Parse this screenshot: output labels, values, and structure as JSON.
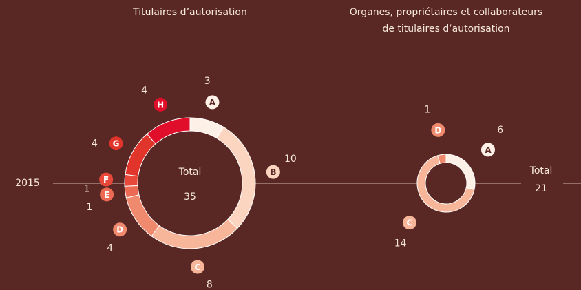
{
  "row_label": "2015",
  "chart_data": [
    {
      "type": "donut",
      "title": [
        "Titulaires d’autorisation"
      ],
      "categories": [
        "A",
        "B",
        "C",
        "D",
        "E",
        "F",
        "G",
        "H"
      ],
      "values": [
        3,
        10,
        8,
        4,
        1,
        1,
        4,
        4
      ],
      "colors": [
        "#fdf0e6",
        "#fbd5c0",
        "#f7b59a",
        "#f08a6e",
        "#ec6a53",
        "#e8483a",
        "#e1342a",
        "#e00e2a"
      ],
      "center_label": "Total",
      "total": 35
    },
    {
      "type": "donut",
      "title": [
        "Organes, propriétaires et collaborateurs",
        "de titulaires d’autorisation"
      ],
      "categories": [
        "A",
        "C",
        "D"
      ],
      "values": [
        6,
        14,
        1
      ],
      "colors": [
        "#fdf0e6",
        "#f7b59a",
        "#f08a6e"
      ],
      "center_label": "Total",
      "total": 21
    }
  ]
}
